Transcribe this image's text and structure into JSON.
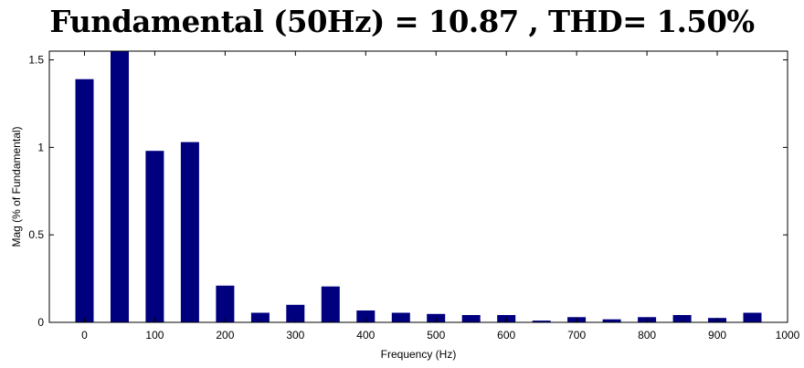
{
  "chart_data": {
    "type": "bar",
    "title": "Fundamental (50Hz) = 10.87 , THD= 1.50%",
    "xlabel": "Frequency (Hz)",
    "ylabel": "Mag (% of Fundamental)",
    "x": [
      0,
      50,
      100,
      150,
      200,
      250,
      300,
      350,
      400,
      450,
      500,
      550,
      600,
      650,
      700,
      750,
      800,
      850,
      900,
      950
    ],
    "values": [
      1.39,
      1.57,
      0.98,
      1.03,
      0.21,
      0.055,
      0.1,
      0.205,
      0.068,
      0.055,
      0.048,
      0.042,
      0.042,
      0.01,
      0.03,
      0.017,
      0.03,
      0.042,
      0.025,
      0.055
    ],
    "xlim": [
      -50,
      1000
    ],
    "ylim": [
      0,
      1.55
    ],
    "xticks": [
      0,
      100,
      200,
      300,
      400,
      500,
      600,
      700,
      800,
      900,
      1000
    ],
    "xtick_labels": [
      "0",
      "100",
      "200",
      "300",
      "400",
      "500",
      "600",
      "700",
      "800",
      "900",
      "1000"
    ],
    "yticks": [
      0,
      0.5,
      1,
      1.5
    ],
    "ytick_labels": [
      "0",
      "0.5",
      "1",
      "1.5"
    ],
    "bar_color": "#00007f",
    "grid": false,
    "legend": false
  }
}
